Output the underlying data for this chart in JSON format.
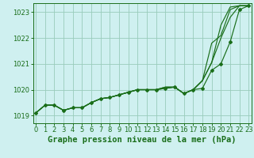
{
  "xlabel": "Graphe pression niveau de la mer (hPa)",
  "ylim": [
    1018.7,
    1023.35
  ],
  "xlim": [
    -0.3,
    23.3
  ],
  "bg_color": "#cff0f0",
  "grid_color": "#99ccbb",
  "line_color": "#1a6e1a",
  "marker_color": "#1a6e1a",
  "series": [
    [
      1019.1,
      1019.4,
      1019.4,
      1019.2,
      1019.3,
      1019.3,
      1019.5,
      1019.65,
      1019.7,
      1019.8,
      1019.9,
      1020.0,
      1020.0,
      1020.0,
      1020.05,
      1020.1,
      1019.85,
      1020.0,
      1020.05,
      1020.75,
      1021.0,
      1021.85,
      1023.1,
      1023.25
    ],
    [
      1019.1,
      1019.4,
      1019.4,
      1019.2,
      1019.3,
      1019.3,
      1019.5,
      1019.65,
      1019.7,
      1019.8,
      1019.9,
      1020.0,
      1020.0,
      1020.0,
      1020.05,
      1020.1,
      1019.85,
      1020.0,
      1020.35,
      1021.05,
      1022.5,
      1023.2,
      1023.25,
      1023.25
    ],
    [
      1019.1,
      1019.4,
      1019.4,
      1019.2,
      1019.3,
      1019.3,
      1019.5,
      1019.65,
      1019.7,
      1019.8,
      1019.9,
      1020.0,
      1020.0,
      1020.0,
      1020.1,
      1020.1,
      1019.85,
      1020.0,
      1020.35,
      1021.8,
      1022.1,
      1023.1,
      1023.25,
      1023.25
    ],
    [
      1019.1,
      1019.4,
      1019.4,
      1019.2,
      1019.3,
      1019.3,
      1019.5,
      1019.65,
      1019.7,
      1019.8,
      1019.9,
      1020.0,
      1020.0,
      1020.0,
      1020.1,
      1020.1,
      1019.85,
      1020.0,
      1020.35,
      1021.05,
      1022.0,
      1022.8,
      1023.25,
      1023.25
    ]
  ],
  "marker_series_idx": 0,
  "yticks": [
    1019,
    1020,
    1021,
    1022,
    1023
  ],
  "xticks": [
    0,
    1,
    2,
    3,
    4,
    5,
    6,
    7,
    8,
    9,
    10,
    11,
    12,
    13,
    14,
    15,
    16,
    17,
    18,
    19,
    20,
    21,
    22,
    23
  ],
  "font_color": "#1a6e1a",
  "tick_fontsize": 6,
  "label_fontsize": 7.5,
  "linewidth": 0.85,
  "markersize": 2.0
}
